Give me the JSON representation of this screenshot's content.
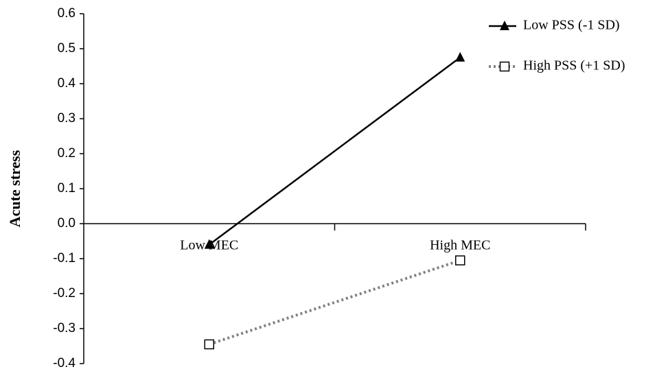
{
  "chart_data": {
    "type": "line",
    "y_label": "Acute stress",
    "categories": [
      "Low MEC",
      "High MEC"
    ],
    "series": [
      {
        "name": "Low PSS (-1 SD)",
        "color": "#000000",
        "marker": "triangle",
        "dash": "solid",
        "values": [
          -0.06,
          0.475
        ]
      },
      {
        "name": "High PSS (+1 SD)",
        "color": "#808080",
        "marker": "square",
        "dash": "dotted",
        "values": [
          -0.345,
          -0.105
        ]
      }
    ],
    "ylim": [
      -0.4,
      0.6
    ],
    "yticks": [
      0.6,
      0.5,
      0.4,
      0.3,
      0.2,
      0.1,
      {
        "value": 0,
        "label": "0.0"
      },
      -0.1,
      -0.2,
      -0.3,
      -0.4
    ],
    "grid": false,
    "legend": "top-right"
  }
}
